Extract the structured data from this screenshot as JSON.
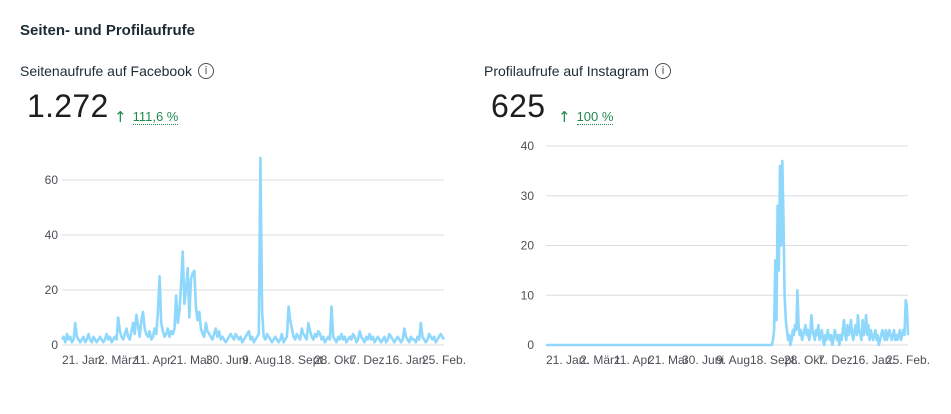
{
  "section_title": "Seiten- und Profilaufrufe",
  "info_icon": "info-icon",
  "colors": {
    "line": "#8fd8fc",
    "grid": "#dadde1",
    "positive": "#1f8a4c"
  },
  "panels": [
    {
      "label": "Seitenaufrufe auf Facebook",
      "value": "1.272",
      "change_arrow": "↑",
      "change": "111,6 %"
    },
    {
      "label": "Profilaufrufe auf Instagram",
      "value": "625",
      "change_arrow": "↑",
      "change": "100 %"
    }
  ],
  "chart_data": [
    {
      "type": "line",
      "ylim": [
        0,
        68
      ],
      "y_ticks": [
        0,
        20,
        40,
        60
      ],
      "x_tick_labels": [
        "21. Jan.",
        "2. März",
        "11. Apr.",
        "21. Mai",
        "30. Juni",
        "9. Aug.",
        "18. Sept.",
        "28. Okt.",
        "7. Dez.",
        "16. Jan.",
        "25. Feb."
      ],
      "series": [
        {
          "values": [
            2,
            3,
            1,
            4,
            2,
            3,
            1,
            2,
            8,
            3,
            2,
            1,
            2,
            3,
            1,
            2,
            4,
            2,
            1,
            3,
            2,
            1,
            2,
            3,
            2,
            1,
            2,
            4,
            2,
            3,
            1,
            2,
            3,
            2,
            10,
            5,
            3,
            2,
            4,
            6,
            3,
            2,
            5,
            8,
            4,
            11,
            7,
            3,
            9,
            12,
            6,
            4,
            3,
            5,
            2,
            3,
            6,
            4,
            12,
            25,
            8,
            5,
            3,
            4,
            6,
            3,
            5,
            4,
            6,
            18,
            8,
            12,
            22,
            34,
            15,
            20,
            28,
            10,
            24,
            26,
            27,
            14,
            9,
            12,
            6,
            4,
            3,
            8,
            5,
            4,
            3,
            2,
            4,
            6,
            3,
            5,
            2,
            3,
            2,
            1,
            2,
            3,
            4,
            3,
            2,
            4,
            3,
            2,
            3,
            1,
            2,
            3,
            4,
            5,
            2,
            3,
            1,
            2,
            3,
            4,
            68,
            12,
            3,
            2,
            4,
            3,
            2,
            1,
            2,
            3,
            2,
            1,
            2,
            4,
            1,
            2,
            3,
            14,
            9,
            6,
            3,
            2,
            4,
            3,
            2,
            6,
            4,
            3,
            2,
            8,
            5,
            3,
            2,
            4,
            3,
            5,
            4,
            2,
            3,
            1,
            2,
            3,
            2,
            14,
            3,
            2,
            1,
            3,
            2,
            4,
            2,
            3,
            1,
            2,
            3,
            2,
            4,
            3,
            1,
            2,
            5,
            3,
            2,
            1,
            3,
            2,
            4,
            2,
            3,
            1,
            2,
            3,
            2,
            1,
            2,
            3,
            1,
            2,
            4,
            3,
            2,
            1,
            2,
            3,
            2,
            1,
            2,
            6,
            3,
            2,
            1,
            3,
            2,
            2,
            1,
            3,
            2,
            8,
            3,
            2,
            1,
            2,
            4,
            3,
            2,
            3,
            1,
            2,
            3,
            4,
            3,
            2
          ]
        }
      ]
    },
    {
      "type": "line",
      "ylim": [
        0,
        40
      ],
      "y_ticks": [
        0,
        10,
        20,
        30,
        40
      ],
      "x_tick_labels": [
        "21. Jan.",
        "2. März",
        "11. Apr.",
        "21. Mai",
        "30. Juni",
        "9. Aug.",
        "18. Sept.",
        "28. Okt.",
        "7. Dez.",
        "16. Jan.",
        "25. Feb."
      ],
      "series": [
        {
          "values": [
            0,
            0,
            0,
            0,
            0,
            0,
            0,
            0,
            0,
            0,
            0,
            0,
            0,
            0,
            0,
            0,
            0,
            0,
            0,
            0,
            0,
            0,
            0,
            0,
            0,
            0,
            0,
            0,
            0,
            0,
            0,
            0,
            0,
            0,
            0,
            0,
            0,
            0,
            0,
            0,
            0,
            0,
            0,
            0,
            0,
            0,
            0,
            0,
            0,
            0,
            0,
            0,
            0,
            0,
            0,
            0,
            0,
            0,
            0,
            0,
            0,
            0,
            0,
            0,
            0,
            0,
            0,
            0,
            0,
            0,
            0,
            0,
            0,
            0,
            0,
            0,
            0,
            0,
            0,
            0,
            0,
            0,
            0,
            0,
            0,
            0,
            0,
            0,
            0,
            0,
            0,
            0,
            0,
            0,
            0,
            0,
            0,
            0,
            0,
            0,
            0,
            0,
            0,
            0,
            0,
            0,
            0,
            0,
            0,
            0,
            0,
            0,
            0,
            0,
            0,
            0,
            0,
            0,
            0,
            0,
            0,
            0,
            0,
            0,
            0,
            0,
            0,
            0,
            0,
            0,
            0,
            0,
            0,
            0,
            0,
            0,
            0,
            0,
            0,
            0,
            0,
            0,
            0,
            0,
            0,
            0,
            0,
            0,
            0,
            0,
            0,
            0,
            0,
            0,
            0,
            0,
            0,
            0,
            0,
            0,
            0,
            0,
            0,
            0,
            0,
            0,
            0,
            0,
            0,
            0,
            0,
            0,
            0,
            0,
            0,
            0,
            0,
            0,
            0,
            0,
            0,
            0,
            0,
            0,
            0,
            0,
            0,
            0,
            0,
            0,
            0,
            0,
            0,
            0,
            0,
            1,
            3,
            17,
            5,
            28,
            15,
            36,
            20,
            37,
            25,
            10,
            5,
            3,
            1,
            2,
            0,
            1,
            3,
            2,
            4,
            3,
            11,
            4,
            2,
            3,
            1,
            2,
            3,
            4,
            2,
            3,
            1,
            2,
            6,
            3,
            2,
            1,
            3,
            2,
            4,
            1,
            2,
            3,
            1,
            0,
            2,
            1,
            3,
            2,
            1,
            2,
            0,
            1,
            3,
            2,
            1,
            2,
            0,
            2,
            1,
            3,
            5,
            2,
            1,
            4,
            2,
            3,
            5,
            2,
            1,
            3,
            4,
            2,
            6,
            3,
            2,
            1,
            5,
            2,
            3,
            6,
            2,
            4,
            1,
            3,
            2,
            1,
            2,
            3,
            1,
            2,
            0,
            1,
            2,
            3,
            2,
            1,
            3,
            1,
            2,
            3,
            2,
            1,
            2,
            3,
            1,
            2,
            1,
            2,
            3,
            1,
            2,
            3,
            2,
            9,
            8,
            2
          ]
        }
      ]
    }
  ]
}
